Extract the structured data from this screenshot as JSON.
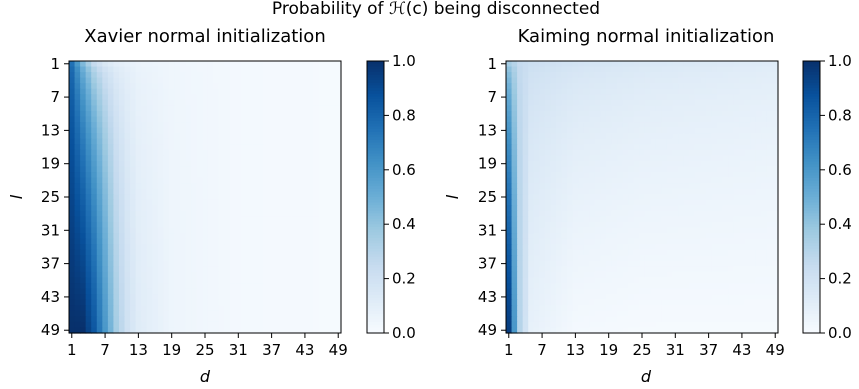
{
  "figure": {
    "suptitle": "Probability of ℋ(c) being disconnected"
  },
  "chart_data": [
    {
      "type": "heatmap",
      "title": "Xavier normal initialization",
      "xlabel": "d",
      "ylabel": "l",
      "x_range": [
        1,
        49
      ],
      "y_range": [
        1,
        49
      ],
      "x_ticks": [
        "1",
        "7",
        "13",
        "19",
        "25",
        "31",
        "37",
        "43",
        "49"
      ],
      "y_ticks": [
        "1",
        "7",
        "13",
        "19",
        "25",
        "31",
        "37",
        "43",
        "49"
      ],
      "y_inverted": true,
      "colormap": "Blues",
      "colorbar": {
        "min": 0.0,
        "max": 1.0,
        "ticks": [
          "0.0",
          "0.2",
          "0.4",
          "0.6",
          "0.8",
          "1.0"
        ]
      },
      "profile_note_values_by_d": [
        {
          "d": 1,
          "l1": 0.75,
          "l49": 1.0
        },
        {
          "d": 3,
          "l1": 0.45,
          "l49": 1.0
        },
        {
          "d": 5,
          "l1": 0.25,
          "l49": 0.85
        },
        {
          "d": 7,
          "l1": 0.15,
          "l49": 0.6
        },
        {
          "d": 9,
          "l1": 0.1,
          "l49": 0.35
        },
        {
          "d": 11,
          "l1": 0.08,
          "l49": 0.2
        },
        {
          "d": 13,
          "l1": 0.06,
          "l49": 0.12
        },
        {
          "d": 19,
          "l1": 0.04,
          "l49": 0.05
        },
        {
          "d": 31,
          "l1": 0.02,
          "l49": 0.02
        },
        {
          "d": 49,
          "l1": 0.01,
          "l49": 0.01
        }
      ]
    },
    {
      "type": "heatmap",
      "title": "Kaiming normal initialization",
      "xlabel": "d",
      "ylabel": "l",
      "x_range": [
        1,
        49
      ],
      "y_range": [
        1,
        49
      ],
      "x_ticks": [
        "1",
        "7",
        "13",
        "19",
        "25",
        "31",
        "37",
        "43",
        "49"
      ],
      "y_ticks": [
        "1",
        "7",
        "13",
        "19",
        "25",
        "31",
        "37",
        "43",
        "49"
      ],
      "y_inverted": true,
      "colormap": "Blues",
      "colorbar": {
        "min": 0.0,
        "max": 1.0,
        "ticks": [
          "0.0",
          "0.2",
          "0.4",
          "0.6",
          "0.8",
          "1.0"
        ]
      },
      "profile_note_values_by_d": [
        {
          "d": 1,
          "l1": 0.35,
          "l49": 0.95
        },
        {
          "d": 2,
          "l1": 0.3,
          "l49": 0.6
        },
        {
          "d": 3,
          "l1": 0.25,
          "l49": 0.3
        },
        {
          "d": 5,
          "l1": 0.22,
          "l49": 0.08
        },
        {
          "d": 13,
          "l1": 0.18,
          "l49": 0.02
        },
        {
          "d": 25,
          "l1": 0.15,
          "l49": 0.01
        },
        {
          "d": 49,
          "l1": 0.12,
          "l49": 0.01
        }
      ]
    }
  ]
}
